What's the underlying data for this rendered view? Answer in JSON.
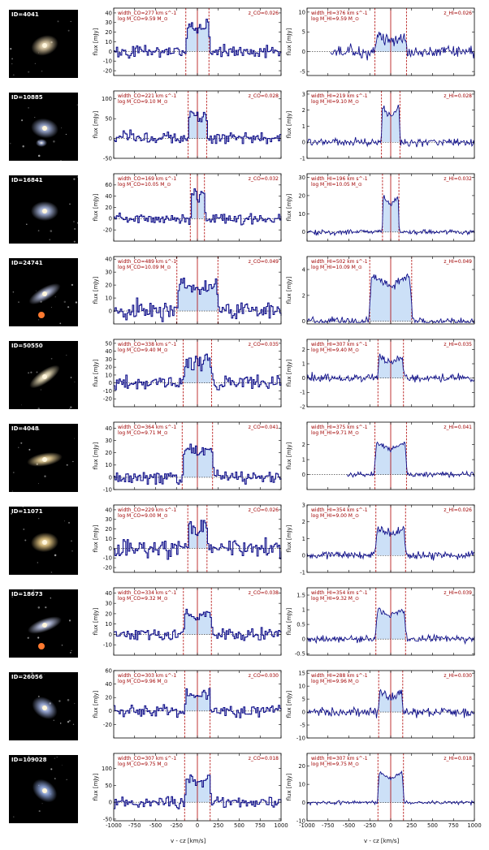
{
  "figure": {
    "xlabel": "v - cz [km/s]",
    "ylabel": "flux [mJy]",
    "x_ticks": [
      -1000,
      -750,
      -500,
      -250,
      0,
      250,
      500,
      750,
      1000
    ],
    "colors": {
      "line": "#0f0f8a",
      "fill": "#cce0f7",
      "marker": "#b00000",
      "annot": "#a00000"
    }
  },
  "chart_data": [
    {
      "type": "line",
      "panel": "CO",
      "id": "ID=4041",
      "annot_width": "width_CO=277 km s^-1",
      "annot_mass": "log M_CO=9.59 M_⊙",
      "annot_z": "z_CO=0.026",
      "xlim": [
        -1000,
        1000
      ],
      "ylim": [
        -25,
        45
      ],
      "yticks": [
        -20,
        -10,
        0,
        10,
        20,
        30,
        40
      ],
      "half_width": 138,
      "center": 0,
      "peak": 30,
      "noise": 9,
      "xstart": -1000,
      "xend": 1000,
      "seed": 101
    },
    {
      "type": "line",
      "panel": "HI",
      "id": "ID=4041",
      "annot_width": "width_HI=376 km s^-1",
      "annot_mass": "log M_HI=9.59 M_⊙",
      "annot_z": "z_HI=0.026",
      "xlim": [
        -1000,
        1000
      ],
      "ylim": [
        -6,
        11
      ],
      "yticks": [
        -5,
        0,
        5,
        10
      ],
      "half_width": 188,
      "center": 0,
      "peak": 4,
      "noise": 2.3,
      "xstart": -720,
      "xend": 1000,
      "seed": 102
    },
    {
      "type": "line",
      "panel": "CO",
      "id": "ID=10885",
      "annot_width": "width_CO=221 km s^-1",
      "annot_mass": "log M_CO=9.10 M_⊙",
      "annot_z": "z_CO=0.028",
      "xlim": [
        -1000,
        1000
      ],
      "ylim": [
        -50,
        120
      ],
      "yticks": [
        -50,
        0,
        50,
        100
      ],
      "half_width": 110,
      "center": 0,
      "peak": 70,
      "noise": 22,
      "xstart": -1000,
      "xend": 1000,
      "seed": 103
    },
    {
      "type": "line",
      "panel": "HI",
      "id": "ID=10885",
      "annot_width": "width_HI=219 km s^-1",
      "annot_mass": "log M_HI=9.10 M_⊙",
      "annot_z": "z_HI=0.028",
      "xlim": [
        -1000,
        1000
      ],
      "ylim": [
        -1,
        3.2
      ],
      "yticks": [
        -1,
        0,
        1,
        2,
        3
      ],
      "half_width": 110,
      "center": 0,
      "peak": 2.2,
      "noise": 0.35,
      "xstart": -1000,
      "xend": 1000,
      "seed": 104
    },
    {
      "type": "line",
      "panel": "CO",
      "id": "ID=16841",
      "annot_width": "width_CO=169 km s^-1",
      "annot_mass": "log M_CO=10.05 M_⊙",
      "annot_z": "z_CO=0.032",
      "xlim": [
        -1000,
        1000
      ],
      "ylim": [
        -40,
        80
      ],
      "yticks": [
        -20,
        0,
        20,
        40,
        60
      ],
      "half_width": 85,
      "center": 0,
      "peak": 48,
      "noise": 14,
      "xstart": -1000,
      "xend": 1000,
      "seed": 105
    },
    {
      "type": "line",
      "panel": "HI",
      "id": "ID=16841",
      "annot_width": "width_HI=196 km s^-1",
      "annot_mass": "log M_HI=10.05 M_⊙",
      "annot_z": "z_HI=0.032",
      "xlim": [
        -1000,
        1000
      ],
      "ylim": [
        -5,
        32
      ],
      "yticks": [
        0,
        10,
        20,
        30
      ],
      "half_width": 98,
      "center": 0,
      "peak": 20,
      "noise": 2,
      "xstart": -1000,
      "xend": 1000,
      "seed": 106
    },
    {
      "type": "line",
      "panel": "CO",
      "id": "ID=24741",
      "annot_width": "width_CO=489 km s^-1",
      "annot_mass": "log M_CO=10.09 M_⊙",
      "annot_z": "z_CO=0.049",
      "xlim": [
        -1000,
        1000
      ],
      "ylim": [
        -10,
        42
      ],
      "yticks": [
        0,
        10,
        20,
        30,
        40
      ],
      "half_width": 245,
      "center": 0,
      "peak": 22,
      "noise": 9,
      "xstart": -1000,
      "xend": 1000,
      "seed": 107
    },
    {
      "type": "line",
      "panel": "HI",
      "id": "ID=24741",
      "annot_width": "width_HI=502 km s^-1",
      "annot_mass": "log M_HI=10.09 M_⊙",
      "annot_z": "z_HI=0.049",
      "xlim": [
        -1000,
        1000
      ],
      "ylim": [
        -0.2,
        5
      ],
      "yticks": [
        0,
        2,
        4
      ],
      "half_width": 251,
      "center": 0,
      "peak": 3.6,
      "noise": 0.45,
      "xstart": -1000,
      "xend": 1000,
      "seed": 108
    },
    {
      "type": "line",
      "panel": "CO",
      "id": "ID=50550",
      "annot_width": "width_CO=338 km s^-1",
      "annot_mass": "log M_CO=9.40 M_⊙",
      "annot_z": "z_CO=0.035",
      "xlim": [
        -1000,
        1000
      ],
      "ylim": [
        -30,
        55
      ],
      "yticks": [
        -20,
        -10,
        0,
        10,
        20,
        30,
        40,
        50
      ],
      "half_width": 169,
      "center": 0,
      "peak": 30,
      "noise": 14,
      "xstart": -1000,
      "xend": 1000,
      "seed": 109
    },
    {
      "type": "line",
      "panel": "HI",
      "id": "ID=50550",
      "annot_width": "width_HI=307 km s^-1",
      "annot_mass": "log M_HI=9.40 M_⊙",
      "annot_z": "z_HI=0.035",
      "xlim": [
        -1000,
        1000
      ],
      "ylim": [
        -2,
        2.7
      ],
      "yticks": [
        -2,
        -1,
        0,
        1,
        2
      ],
      "half_width": 153,
      "center": 0,
      "peak": 1.5,
      "noise": 0.42,
      "xstart": -1000,
      "xend": 1000,
      "seed": 110
    },
    {
      "type": "line",
      "panel": "CO",
      "id": "ID=4048",
      "annot_width": "width_CO=364 km s^-1",
      "annot_mass": "log M_CO=9.71 M_⊙",
      "annot_z": "z_CO=0.041",
      "xlim": [
        -1000,
        1000
      ],
      "ylim": [
        -10,
        45
      ],
      "yticks": [
        -10,
        0,
        10,
        20,
        30,
        40
      ],
      "half_width": 182,
      "center": 0,
      "peak": 26,
      "noise": 7,
      "xstart": -1000,
      "xend": 1000,
      "seed": 111
    },
    {
      "type": "line",
      "panel": "HI",
      "id": "ID=4048",
      "annot_width": "width_HI=375 km s^-1",
      "annot_mass": "log M_HI=9.71 M_⊙",
      "annot_z": "z_HI=0.041",
      "xlim": [
        -1000,
        1000
      ],
      "ylim": [
        -1,
        3.5
      ],
      "yticks": [
        0,
        1,
        2
      ],
      "half_width": 188,
      "center": 0,
      "peak": 2.2,
      "noise": 0.28,
      "xstart": -520,
      "xend": 1000,
      "seed": 112
    },
    {
      "type": "line",
      "panel": "CO",
      "id": "ID=11071",
      "annot_width": "width_CO=229 km s^-1",
      "annot_mass": "log M_CO=9.00 M_⊙",
      "annot_z": "z_CO=0.026",
      "xlim": [
        -1000,
        1000
      ],
      "ylim": [
        -25,
        45
      ],
      "yticks": [
        -20,
        -10,
        0,
        10,
        20,
        30,
        40
      ],
      "half_width": 115,
      "center": 0,
      "peak": 25,
      "noise": 13,
      "xstart": -1000,
      "xend": 1000,
      "seed": 113
    },
    {
      "type": "line",
      "panel": "HI",
      "id": "ID=11071",
      "annot_width": "width_HI=354 km s^-1",
      "annot_mass": "log M_HI=9.00 M_⊙",
      "annot_z": "z_HI=0.026",
      "xlim": [
        -1000,
        1000
      ],
      "ylim": [
        -1,
        3
      ],
      "yticks": [
        -1,
        0,
        1,
        2,
        3
      ],
      "half_width": 177,
      "center": 0,
      "peak": 1.6,
      "noise": 0.35,
      "xstart": -1000,
      "xend": 1000,
      "seed": 114
    },
    {
      "type": "line",
      "panel": "CO",
      "id": "ID=18673",
      "annot_width": "width_CO=334 km s^-1",
      "annot_mass": "log M_CO=9.32 M_⊙",
      "annot_z": "z_CO=0.038",
      "xlim": [
        -1000,
        1000
      ],
      "ylim": [
        -20,
        45
      ],
      "yticks": [
        -10,
        0,
        10,
        20,
        30,
        40
      ],
      "half_width": 167,
      "center": 0,
      "peak": 22,
      "noise": 8,
      "xstart": -1000,
      "xend": 1000,
      "seed": 115
    },
    {
      "type": "line",
      "panel": "HI",
      "id": "ID=18673",
      "annot_width": "width_HI=354 km s^-1",
      "annot_mass": "log M_HI=9.32 M_⊙",
      "annot_z": "z_HI=0.039",
      "xlim": [
        -1000,
        1000
      ],
      "ylim": [
        -0.55,
        1.75
      ],
      "yticks": [
        -0.5,
        0.0,
        0.5,
        1.0,
        1.5
      ],
      "half_width": 177,
      "center": 0,
      "peak": 1.05,
      "noise": 0.18,
      "xstart": -1000,
      "xend": 1000,
      "seed": 116
    },
    {
      "type": "line",
      "panel": "CO",
      "id": "ID=26056",
      "annot_width": "width_CO=303 km s^-1",
      "annot_mass": "log M_CO=9.96 M_⊙",
      "annot_z": "z_CO=0.030",
      "xlim": [
        -1000,
        1000
      ],
      "ylim": [
        -40,
        60
      ],
      "yticks": [
        -20,
        0,
        20,
        40,
        60
      ],
      "half_width": 152,
      "center": 0,
      "peak": 25,
      "noise": 12,
      "xstart": -1000,
      "xend": 1000,
      "seed": 117
    },
    {
      "type": "line",
      "panel": "HI",
      "id": "ID=26056",
      "annot_width": "width_HI=288 km s^-1",
      "annot_mass": "log M_HI=9.96 M_⊙",
      "annot_z": "z_HI=0.030",
      "xlim": [
        -1000,
        1000
      ],
      "ylim": [
        -10,
        16
      ],
      "yticks": [
        -10,
        -5,
        0,
        5,
        10,
        15
      ],
      "half_width": 144,
      "center": 0,
      "peak": 8,
      "noise": 2.7,
      "xstart": -1000,
      "xend": 1000,
      "seed": 118
    },
    {
      "type": "line",
      "panel": "CO",
      "id": "ID=109028",
      "annot_width": "width_CO=307 km s^-1",
      "annot_mass": "log M_CO=9.75 M_⊙",
      "annot_z": "z_CO=0.018",
      "xlim": [
        -1000,
        1000
      ],
      "ylim": [
        -55,
        145
      ],
      "yticks": [
        -50,
        0,
        50,
        100
      ],
      "half_width": 153,
      "center": 0,
      "peak": 75,
      "noise": 25,
      "xstart": -1000,
      "xend": 1000,
      "seed": 119
    },
    {
      "type": "line",
      "panel": "HI",
      "id": "ID=109028",
      "annot_width": "width_HI=307 km s^-1",
      "annot_mass": "log M_HI=9.75 M_⊙",
      "annot_z": "z_HI=0.018",
      "xlim": [
        -1000,
        1000
      ],
      "ylim": [
        -10,
        27
      ],
      "yticks": [
        -10,
        0,
        10,
        20
      ],
      "half_width": 153,
      "center": 0,
      "peak": 17,
      "noise": 1.4,
      "xstart": -1000,
      "xend": 1000,
      "seed": 120
    }
  ],
  "thumbnails": [
    {
      "id": "ID=4041",
      "kind": "disk",
      "color": "#d9c6a0",
      "angle": -20
    },
    {
      "id": "ID=10885",
      "kind": "pair",
      "color": "#9aa8d0",
      "angle": 10
    },
    {
      "id": "ID=16841",
      "kind": "disk",
      "color": "#aab8e0",
      "angle": 0
    },
    {
      "id": "ID=24741",
      "kind": "edge",
      "color": "#b0b8d8",
      "angle": 60
    },
    {
      "id": "ID=50550",
      "kind": "edge",
      "color": "#e0d4b0",
      "angle": 55
    },
    {
      "id": "ID=4048",
      "kind": "edge",
      "color": "#e0c890",
      "angle": 80
    },
    {
      "id": "ID=11071",
      "kind": "disk",
      "color": "#e6c884",
      "angle": -5
    },
    {
      "id": "ID=18673",
      "kind": "edge",
      "color": "#b8c0e0",
      "angle": 70
    },
    {
      "id": "ID=26056",
      "kind": "disk",
      "color": "#a0b0e0",
      "angle": 35
    },
    {
      "id": "ID=109028",
      "kind": "disk",
      "color": "#90a8e0",
      "angle": 40
    }
  ]
}
